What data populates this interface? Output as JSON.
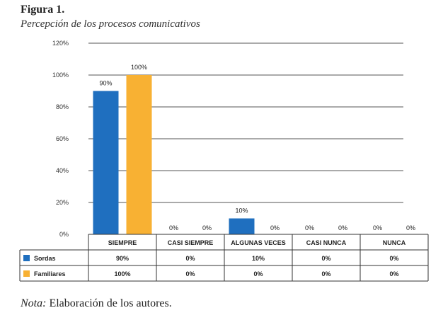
{
  "figure": {
    "label": "Figura 1.",
    "title": "Percepción de los procesos comunicativos",
    "note_prefix": "Nota:",
    "note_text": " Elaboración de los autores."
  },
  "chart_data": {
    "type": "bar",
    "categories": [
      "SIEMPRE",
      "CASI SIEMPRE",
      "ALGUNAS VECES",
      "CASI NUNCA",
      "NUNCA"
    ],
    "series": [
      {
        "name": "Sordas",
        "values": [
          90,
          0,
          10,
          0,
          0
        ],
        "labels": [
          "90%",
          "0%",
          "10%",
          "0%",
          "0%"
        ],
        "color": "#1f6fbf"
      },
      {
        "name": "Familiares",
        "values": [
          100,
          0,
          0,
          0,
          0
        ],
        "labels": [
          "100%",
          "0%",
          "0%",
          "0%",
          "0%"
        ],
        "color": "#f8b133"
      }
    ],
    "yticks": [
      "0%",
      "20%",
      "40%",
      "60%",
      "80%",
      "100%",
      "120%"
    ],
    "ylim": [
      0,
      120
    ],
    "grid": true,
    "legend": "data-table-below"
  }
}
